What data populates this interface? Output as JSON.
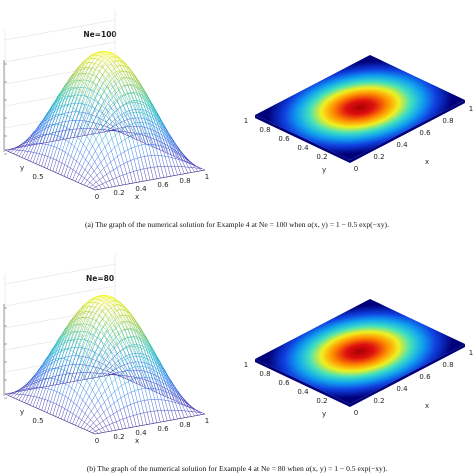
{
  "panels": [
    {
      "title": "Ne=100",
      "surface": {
        "x_label": "x",
        "y_label": "y",
        "x_ticks": [
          "0",
          "0.2",
          "0.4",
          "0.6",
          "0.8",
          "1"
        ],
        "y_ticks": [
          "0.5"
        ]
      },
      "heatmap": {
        "x_label": "x",
        "y_label": "y",
        "x_ticks": [
          "0",
          "0.2",
          "0.4",
          "0.6",
          "0.8",
          "1"
        ],
        "y_ticks": [
          "1",
          "0.8",
          "0.6",
          "0.4",
          "0.2"
        ]
      },
      "caption": "(a) The graph of the numerical solution for Example 4 at Ne = 100 when α(x, y) = 1 − 0.5 exp(−xy)."
    },
    {
      "title": "Ne=80",
      "surface": {
        "x_label": "x",
        "y_label": "y",
        "x_ticks": [
          "0",
          "0.2",
          "0.4",
          "0.6",
          "0.8",
          "1"
        ],
        "y_ticks": [
          "0.5"
        ]
      },
      "heatmap": {
        "x_label": "x",
        "y_label": "y",
        "x_ticks": [
          "0",
          "0.2",
          "0.4",
          "0.6",
          "0.8",
          "1"
        ],
        "y_ticks": [
          "1",
          "0.8",
          "0.6",
          "0.4",
          "0.2"
        ]
      },
      "caption": "(b) The graph of the numerical solution for Example 4 at Ne = 80 when α(x, y) = 1 − 0.5 exp(−xy)."
    }
  ]
}
